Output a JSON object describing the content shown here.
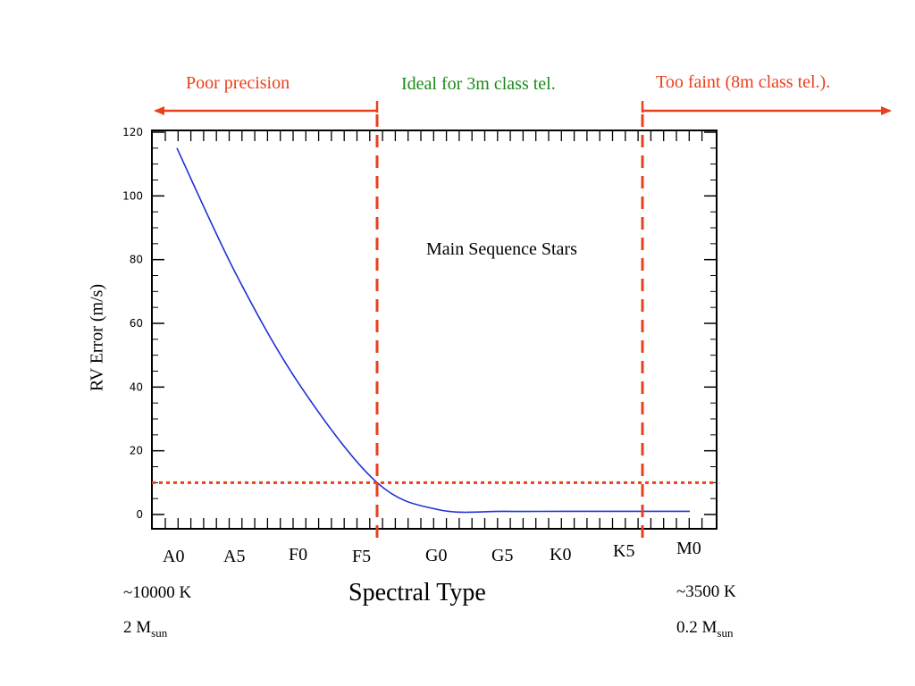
{
  "regions": {
    "poor": "Poor precision",
    "ideal": "Ideal for 3m class tel.",
    "faint": "Too faint (8m class tel.)."
  },
  "colors": {
    "curve": "#1f2fd6",
    "markers": "#e8401c",
    "ideal_text": "#1a8a1a"
  },
  "chart_data": {
    "type": "line",
    "title": "",
    "xlabel": "Spectral Type",
    "ylabel": "RV Error (m/s)",
    "annotation": "Main Sequence Stars",
    "ylim": [
      0,
      120
    ],
    "yticks": [
      0,
      20,
      40,
      60,
      80,
      100,
      120
    ],
    "x_categories": [
      "A0",
      "A5",
      "F0",
      "F5",
      "G0",
      "G5",
      "K0",
      "K5",
      "M0"
    ],
    "series": [
      {
        "x": [
          "A0",
          "A5",
          "F0",
          "F5",
          "G0",
          "G5",
          "K0",
          "K5",
          "M0"
        ],
        "values": [
          115,
          75,
          40,
          10,
          1.5,
          1,
          1,
          1,
          1
        ]
      }
    ],
    "threshold_y": 10,
    "vertical_markers": [
      "F5",
      "K5"
    ],
    "x_notes": {
      "left_temp": "~10000 K",
      "left_mass": "2 M",
      "left_mass_sub": "sun",
      "right_temp": "~3500 K",
      "right_mass": "0.2 M",
      "right_mass_sub": "sun"
    }
  }
}
